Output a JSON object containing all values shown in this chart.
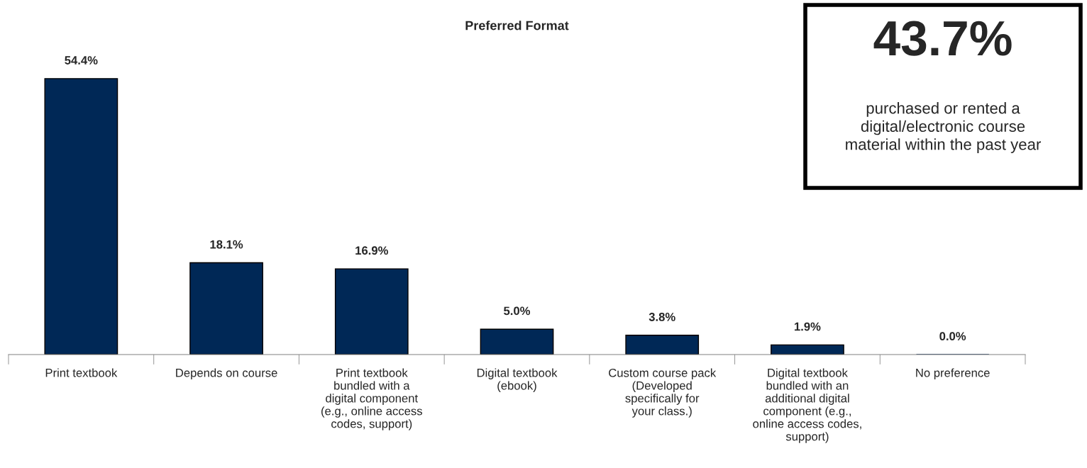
{
  "chart_data": {
    "type": "bar",
    "title": "Preferred Format",
    "categories": [
      "Print textbook",
      "Depends on course",
      "Print textbook bundled with a digital component (e.g., online access codes, support)",
      "Digital textbook (ebook)",
      "Custom course pack (Developed specifically for your class.)",
      "Digital textbook bundled with an additional digital component (e.g., online access codes, support)",
      "No preference"
    ],
    "values": [
      54.4,
      18.1,
      16.9,
      5.0,
      3.8,
      1.9,
      0.0
    ],
    "value_labels": [
      "54.4%",
      "18.1%",
      "16.9%",
      "5.0%",
      "3.8%",
      "1.9%",
      "0.0%"
    ],
    "color": "#002856",
    "grid": false,
    "legend": false,
    "annotations": [
      "43.7%",
      "purchased or rented a digital/electronic course material within the past year"
    ]
  }
}
